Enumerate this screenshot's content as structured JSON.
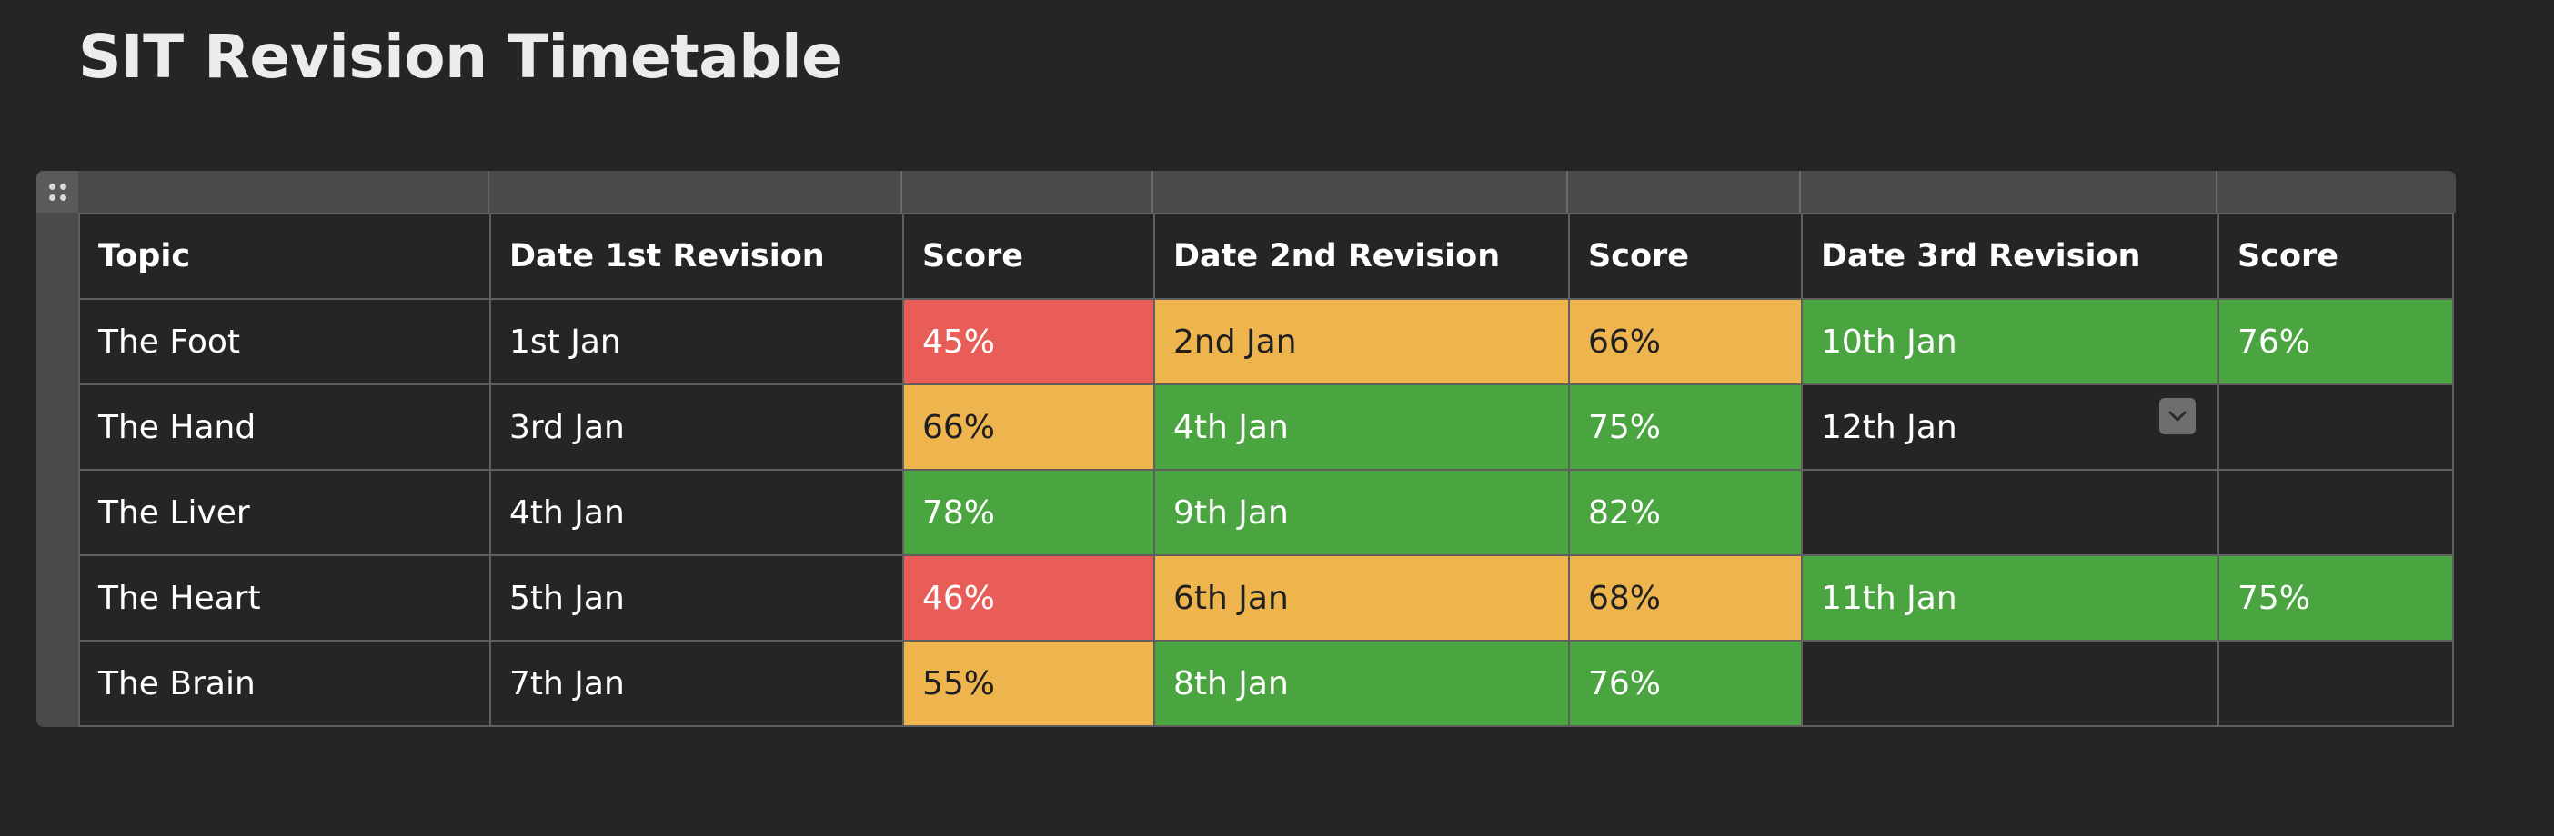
{
  "page": {
    "title": "SIT Revision Timetable"
  },
  "icons": {
    "drag_handle": "drag-handle-icon",
    "dropdown": "chevron-down-icon"
  },
  "colors": {
    "background": "#252525",
    "red": "#e85d57",
    "amber": "#eeb54f",
    "green": "#4aa43f",
    "grid_line": "#5f5f5f",
    "header_strip": "#4a4a4a"
  },
  "table": {
    "headers": [
      "Topic",
      "Date 1st Revision",
      "Score",
      "Date 2nd Revision",
      "Score",
      "Date 3rd Revision",
      "Score"
    ],
    "rows": [
      {
        "cells": [
          {
            "text": "The Foot",
            "status": ""
          },
          {
            "text": "1st Jan",
            "status": ""
          },
          {
            "text": "45%",
            "status": "red"
          },
          {
            "text": "2nd Jan",
            "status": "amber"
          },
          {
            "text": "66%",
            "status": "amber"
          },
          {
            "text": "10th Jan",
            "status": "green"
          },
          {
            "text": "76%",
            "status": "green"
          }
        ]
      },
      {
        "cells": [
          {
            "text": "The Hand",
            "status": ""
          },
          {
            "text": "3rd Jan",
            "status": ""
          },
          {
            "text": "66%",
            "status": "amber"
          },
          {
            "text": "4th Jan",
            "status": "green"
          },
          {
            "text": "75%",
            "status": "green"
          },
          {
            "text": "12th Jan",
            "status": "",
            "dropdown": true
          },
          {
            "text": "",
            "status": ""
          }
        ]
      },
      {
        "cells": [
          {
            "text": "The Liver",
            "status": ""
          },
          {
            "text": "4th Jan",
            "status": ""
          },
          {
            "text": "78%",
            "status": "green"
          },
          {
            "text": "9th Jan",
            "status": "green"
          },
          {
            "text": "82%",
            "status": "green"
          },
          {
            "text": "",
            "status": ""
          },
          {
            "text": "",
            "status": ""
          }
        ]
      },
      {
        "cells": [
          {
            "text": "The Heart",
            "status": ""
          },
          {
            "text": "5th Jan",
            "status": ""
          },
          {
            "text": "46%",
            "status": "red"
          },
          {
            "text": "6th Jan",
            "status": "amber"
          },
          {
            "text": "68%",
            "status": "amber"
          },
          {
            "text": "11th Jan",
            "status": "green"
          },
          {
            "text": "75%",
            "status": "green"
          }
        ]
      },
      {
        "cells": [
          {
            "text": "The Brain",
            "status": ""
          },
          {
            "text": "7th Jan",
            "status": ""
          },
          {
            "text": "55%",
            "status": "amber"
          },
          {
            "text": "8th Jan",
            "status": "green"
          },
          {
            "text": "76%",
            "status": "green"
          },
          {
            "text": "",
            "status": ""
          },
          {
            "text": "",
            "status": ""
          }
        ]
      }
    ]
  }
}
